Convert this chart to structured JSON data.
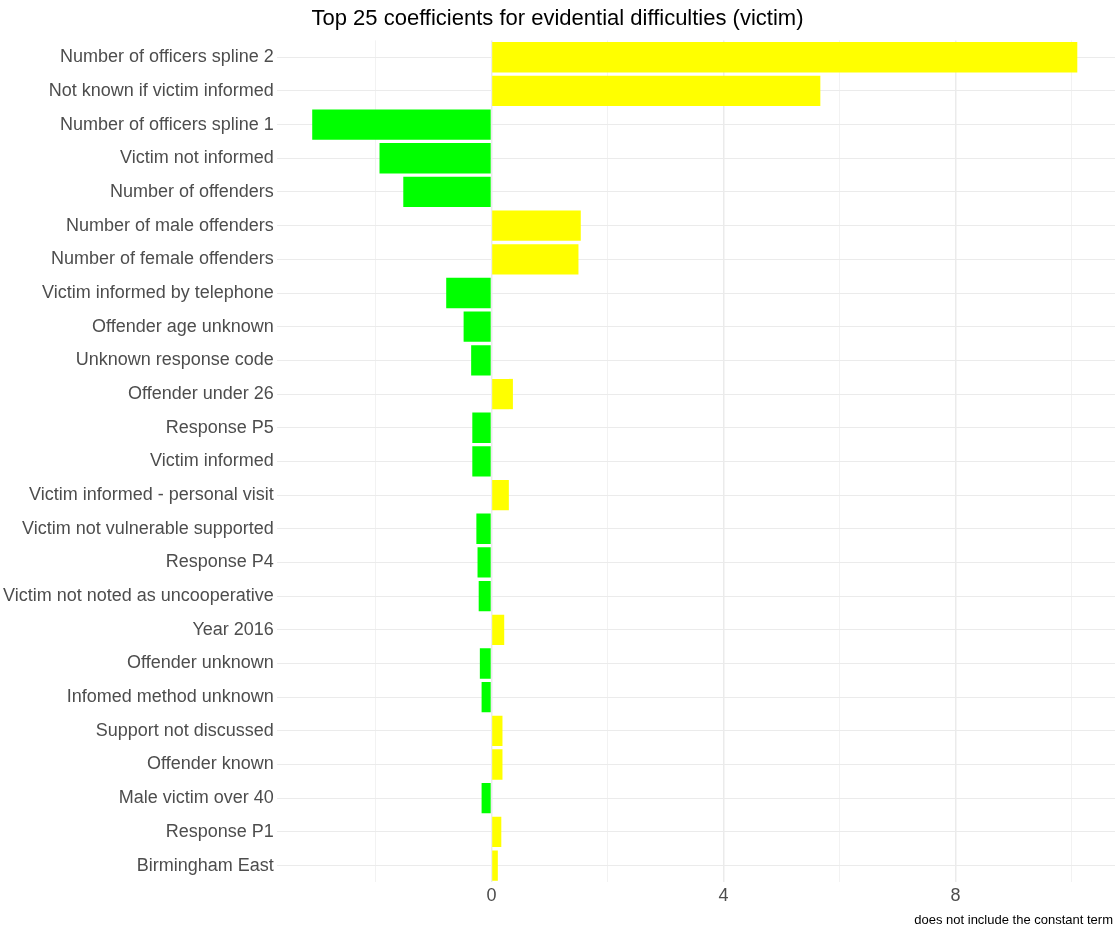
{
  "chart_data": {
    "type": "bar",
    "orientation": "horizontal",
    "title": "Top 25 coefficients for evidential difficulties (victim)",
    "categories": [
      "Number of officers spline 2",
      "Not known if victim informed",
      "Number of officers spline 1",
      "Victim not informed",
      "Number of offenders",
      "Number of male offenders",
      "Number of female offenders",
      "Victim informed by telephone",
      "Offender age unknown",
      "Unknown response code",
      "Offender under 26",
      "Response P5",
      "Victim informed",
      "Victim informed - personal visit",
      "Victim not vulnerable supported",
      "Response P4",
      "Victim not noted as uncooperative",
      "Year 2016",
      "Offender unknown",
      "Infomed method unknown",
      "Support not discussed",
      "Offender known",
      "Male victim over 40",
      "Response P1",
      "Birmingham East"
    ],
    "values": [
      10.1,
      5.67,
      -3.09,
      -1.93,
      -1.52,
      1.54,
      1.5,
      -0.78,
      -0.48,
      -0.35,
      0.37,
      -0.33,
      -0.33,
      0.3,
      -0.26,
      -0.24,
      -0.22,
      0.22,
      -0.2,
      -0.17,
      0.19,
      0.19,
      -0.17,
      0.17,
      0.11
    ],
    "colors": [
      "#ffff00",
      "#ffff00",
      "#00ff00",
      "#00ff00",
      "#00ff00",
      "#ffff00",
      "#ffff00",
      "#00ff00",
      "#00ff00",
      "#00ff00",
      "#ffff00",
      "#00ff00",
      "#00ff00",
      "#ffff00",
      "#00ff00",
      "#00ff00",
      "#00ff00",
      "#ffff00",
      "#00ff00",
      "#00ff00",
      "#ffff00",
      "#ffff00",
      "#00ff00",
      "#ffff00",
      "#ffff00"
    ],
    "xlim": [
      -3.7,
      10.75
    ],
    "xticks": [
      {
        "value": -2,
        "label": null
      },
      0,
      {
        "value": 2,
        "label": null
      },
      4,
      {
        "value": 6,
        "label": null
      },
      8,
      {
        "value": 10,
        "label": null
      }
    ],
    "grid": true,
    "annotations": [
      "does not include the constant term"
    ]
  }
}
